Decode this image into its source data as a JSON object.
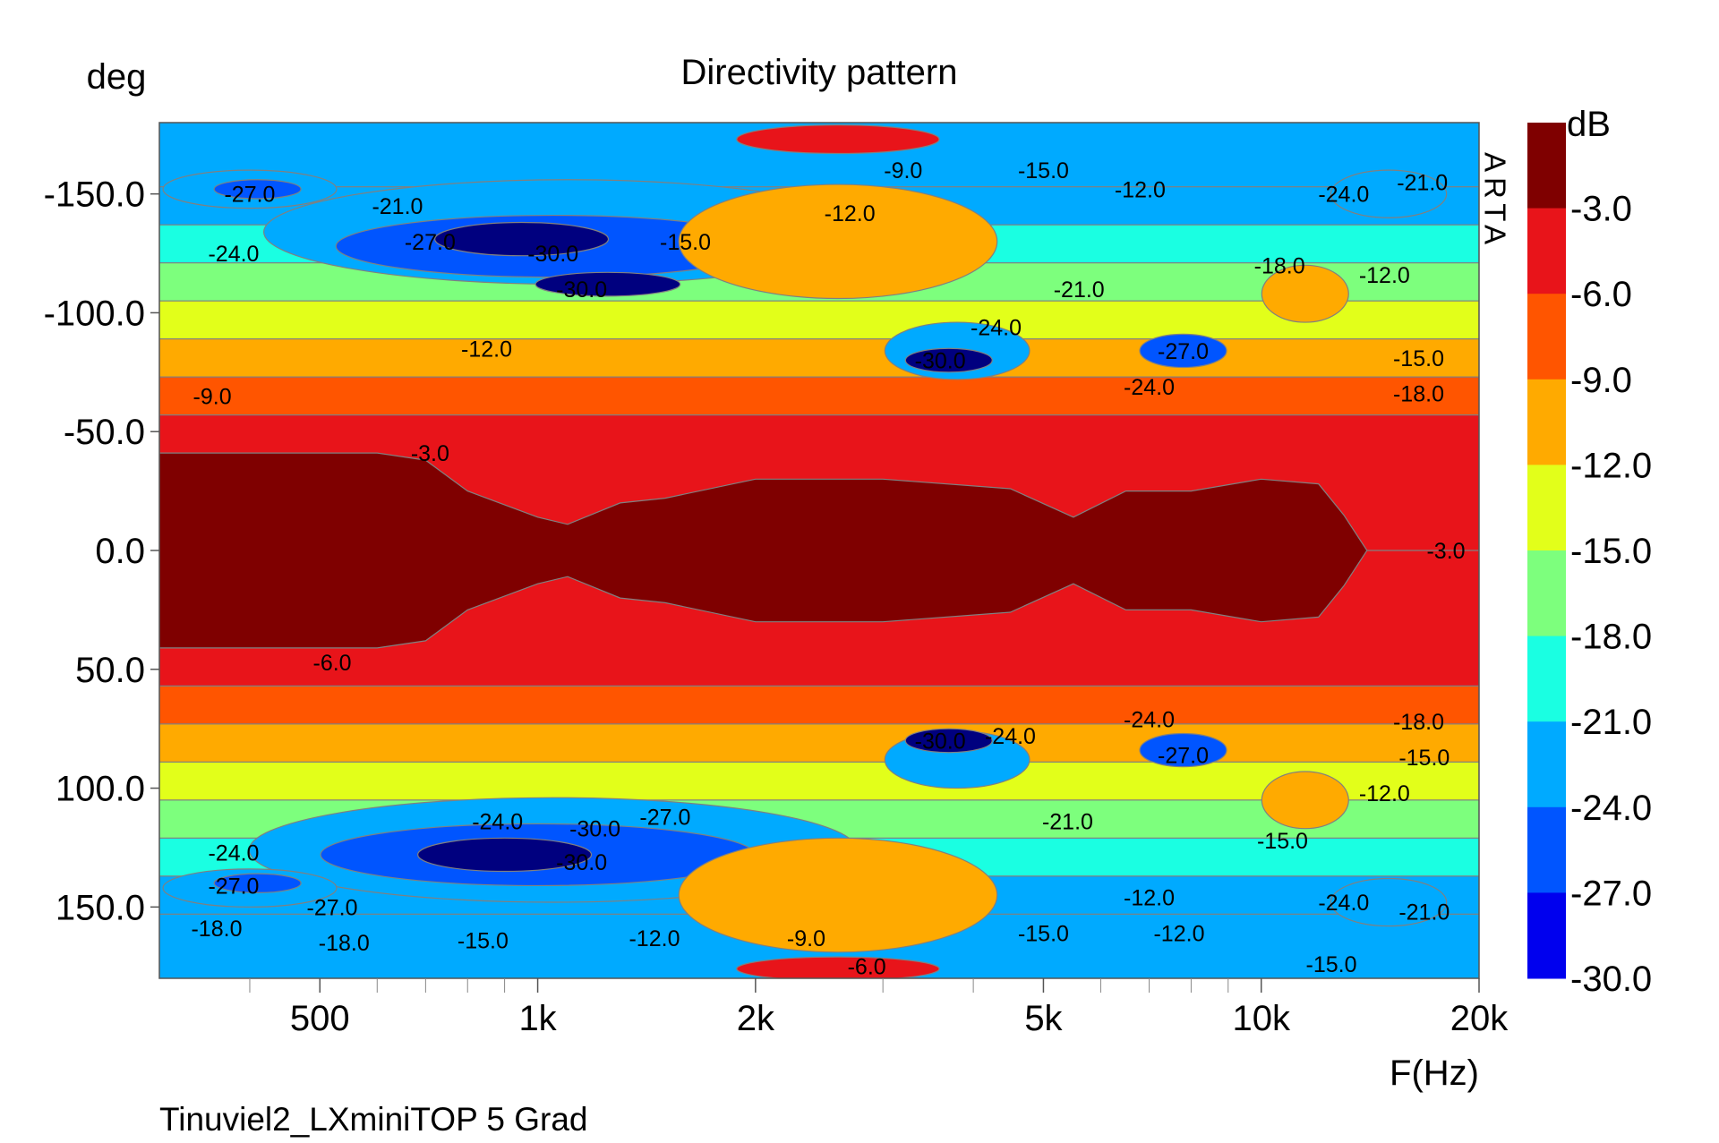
{
  "chart_data": {
    "type": "heatmap",
    "title": "Directivity pattern",
    "xlabel": "F(Hz)",
    "ylabel": "deg",
    "colorbar_label": "dB",
    "watermark": "ARTA",
    "caption": "Tinuviel2_LXminiTOP 5 Grad",
    "x_scale": "log",
    "xlim": [
      300,
      20000
    ],
    "ylim": [
      -180,
      180
    ],
    "y_inverted": true,
    "x_ticks": [
      {
        "value": 500,
        "label": "500"
      },
      {
        "value": 1000,
        "label": "1k"
      },
      {
        "value": 2000,
        "label": "2k"
      },
      {
        "value": 5000,
        "label": "5k"
      },
      {
        "value": 10000,
        "label": "10k"
      },
      {
        "value": 20000,
        "label": "20k"
      }
    ],
    "x_minor_ticks": [
      400,
      600,
      700,
      800,
      900,
      3000,
      4000,
      6000,
      7000,
      8000,
      9000
    ],
    "y_ticks": [
      {
        "value": -150,
        "label": "-150.0"
      },
      {
        "value": -100,
        "label": "-100.0"
      },
      {
        "value": -50,
        "label": "-50.0"
      },
      {
        "value": 0,
        "label": "0.0"
      },
      {
        "value": 50,
        "label": "50.0"
      },
      {
        "value": 100,
        "label": "100.0"
      },
      {
        "value": 150,
        "label": "150.0"
      }
    ],
    "levels": [
      {
        "label": "-3.0",
        "min": -3,
        "color": "#7f0000"
      },
      {
        "label": "-6.0",
        "min": -6,
        "color": "#e8141a"
      },
      {
        "label": "-9.0",
        "min": -9,
        "color": "#ff5500"
      },
      {
        "label": "-12.0",
        "min": -12,
        "color": "#ffaa00"
      },
      {
        "label": "-15.0",
        "min": -15,
        "color": "#e2ff1a"
      },
      {
        "label": "-18.0",
        "min": -18,
        "color": "#7dff7d"
      },
      {
        "label": "-21.0",
        "min": -21,
        "color": "#1affe2"
      },
      {
        "label": "-24.0",
        "min": -24,
        "color": "#00aaff"
      },
      {
        "label": "-27.0",
        "min": -27,
        "color": "#0055ff"
      },
      {
        "label": "-30.0",
        "min": -30,
        "color": "#0000ee"
      }
    ],
    "blob_colors": {
      "-30": "#00007f"
    },
    "beam": [
      {
        "f": 300,
        "w": 41
      },
      {
        "f": 500,
        "w": 41
      },
      {
        "f": 600,
        "w": 41
      },
      {
        "f": 700,
        "w": 38
      },
      {
        "f": 800,
        "w": 25
      },
      {
        "f": 1000,
        "w": 14
      },
      {
        "f": 1100,
        "w": 11
      },
      {
        "f": 1300,
        "w": 20
      },
      {
        "f": 1500,
        "w": 22
      },
      {
        "f": 2000,
        "w": 30
      },
      {
        "f": 3000,
        "w": 30
      },
      {
        "f": 4500,
        "w": 26
      },
      {
        "f": 5500,
        "w": 14
      },
      {
        "f": 6500,
        "w": 25
      },
      {
        "f": 8000,
        "w": 25
      },
      {
        "f": 10000,
        "w": 30
      },
      {
        "f": 12000,
        "w": 28
      },
      {
        "f": 13000,
        "w": 15
      },
      {
        "f": 14000,
        "w": 0
      },
      {
        "f": 20000,
        "w": 0
      }
    ],
    "blobs": [
      {
        "fc": 1100,
        "a": -134,
        "fw": 0.42,
        "aw": 22,
        "level": -24
      },
      {
        "fc": 1050,
        "a": -128,
        "fw": 0.3,
        "aw": 13,
        "level": -27
      },
      {
        "fc": 950,
        "a": -131,
        "fw": 0.12,
        "aw": 7,
        "level": -30
      },
      {
        "fc": 1250,
        "a": -112,
        "fw": 0.1,
        "aw": 5,
        "level": -30
      },
      {
        "fc": 400,
        "a": -152,
        "fw": 0.12,
        "aw": 8,
        "level": -24
      },
      {
        "fc": 410,
        "a": -152,
        "fw": 0.06,
        "aw": 4,
        "level": -27
      },
      {
        "fc": 3800,
        "a": -84,
        "fw": 0.1,
        "aw": 12,
        "level": -24
      },
      {
        "fc": 3700,
        "a": -80,
        "fw": 0.06,
        "aw": 5,
        "level": -30
      },
      {
        "fc": 7800,
        "a": -84,
        "fw": 0.06,
        "aw": 7,
        "level": -27
      },
      {
        "fc": 15000,
        "a": -150,
        "fw": 0.08,
        "aw": 10,
        "level": -24
      },
      {
        "fc": 1050,
        "a": 126,
        "fw": 0.42,
        "aw": 22,
        "level": -24
      },
      {
        "fc": 1000,
        "a": 128,
        "fw": 0.3,
        "aw": 13,
        "level": -27
      },
      {
        "fc": 900,
        "a": 128,
        "fw": 0.12,
        "aw": 7,
        "level": -30
      },
      {
        "fc": 400,
        "a": 142,
        "fw": 0.12,
        "aw": 8,
        "level": -24
      },
      {
        "fc": 410,
        "a": 140,
        "fw": 0.06,
        "aw": 4,
        "level": -27
      },
      {
        "fc": 3800,
        "a": 88,
        "fw": 0.1,
        "aw": 12,
        "level": -24
      },
      {
        "fc": 3700,
        "a": 80,
        "fw": 0.06,
        "aw": 5,
        "level": -30
      },
      {
        "fc": 7800,
        "a": 84,
        "fw": 0.06,
        "aw": 7,
        "level": -27
      },
      {
        "fc": 15000,
        "a": 148,
        "fw": 0.08,
        "aw": 10,
        "level": -24
      },
      {
        "fc": 2600,
        "a": -130,
        "fw": 0.22,
        "aw": 24,
        "level": -12
      },
      {
        "fc": 2600,
        "a": 145,
        "fw": 0.22,
        "aw": 24,
        "level": -12
      },
      {
        "fc": 11500,
        "a": -108,
        "fw": 0.06,
        "aw": 12,
        "level": -12
      },
      {
        "fc": 11500,
        "a": 105,
        "fw": 0.06,
        "aw": 12,
        "level": -12
      },
      {
        "fc": 2600,
        "a": -173,
        "fw": 0.14,
        "aw": 6,
        "level": -6
      },
      {
        "fc": 2600,
        "a": 176,
        "fw": 0.14,
        "aw": 5,
        "level": -6
      }
    ],
    "contour_labels": [
      {
        "f": 400,
        "a": -150,
        "text": "-27.0"
      },
      {
        "f": 380,
        "a": -125,
        "text": "-24.0"
      },
      {
        "f": 640,
        "a": -145,
        "text": "-21.0"
      },
      {
        "f": 710,
        "a": -130,
        "text": "-27.0"
      },
      {
        "f": 1050,
        "a": -125,
        "text": "-30.0"
      },
      {
        "f": 1150,
        "a": -110,
        "text": "-30.0"
      },
      {
        "f": 1600,
        "a": -130,
        "text": "-15.0"
      },
      {
        "f": 2700,
        "a": -142,
        "text": "-12.0"
      },
      {
        "f": 3200,
        "a": -160,
        "text": "-9.0"
      },
      {
        "f": 5000,
        "a": -160,
        "text": "-15.0"
      },
      {
        "f": 6800,
        "a": -152,
        "text": "-12.0"
      },
      {
        "f": 13000,
        "a": -150,
        "text": "-24.0"
      },
      {
        "f": 16700,
        "a": -155,
        "text": "-21.0"
      },
      {
        "f": 10600,
        "a": -120,
        "text": "-18.0"
      },
      {
        "f": 14800,
        "a": -116,
        "text": "-12.0"
      },
      {
        "f": 5600,
        "a": -110,
        "text": "-21.0"
      },
      {
        "f": 4300,
        "a": -94,
        "text": "-24.0"
      },
      {
        "f": 3600,
        "a": -80,
        "text": "-30.0"
      },
      {
        "f": 7800,
        "a": -84,
        "text": "-27.0"
      },
      {
        "f": 7000,
        "a": -69,
        "text": "-24.0"
      },
      {
        "f": 16500,
        "a": -81,
        "text": "-15.0"
      },
      {
        "f": 16500,
        "a": -66,
        "text": "-18.0"
      },
      {
        "f": 850,
        "a": -85,
        "text": "-12.0"
      },
      {
        "f": 355,
        "a": -65,
        "text": "-9.0"
      },
      {
        "f": 710,
        "a": -41,
        "text": "-3.0"
      },
      {
        "f": 18000,
        "a": 0,
        "text": "-3.0"
      },
      {
        "f": 520,
        "a": 47,
        "text": "-6.0"
      },
      {
        "f": 7000,
        "a": 71,
        "text": "-24.0"
      },
      {
        "f": 7800,
        "a": 86,
        "text": "-27.0"
      },
      {
        "f": 3600,
        "a": 80,
        "text": "-30.0"
      },
      {
        "f": 4500,
        "a": 78,
        "text": "-24.0"
      },
      {
        "f": 16500,
        "a": 72,
        "text": "-18.0"
      },
      {
        "f": 16800,
        "a": 87,
        "text": "-15.0"
      },
      {
        "f": 14800,
        "a": 102,
        "text": "-12.0"
      },
      {
        "f": 5400,
        "a": 114,
        "text": "-21.0"
      },
      {
        "f": 10700,
        "a": 122,
        "text": "-15.0"
      },
      {
        "f": 880,
        "a": 114,
        "text": "-24.0"
      },
      {
        "f": 1200,
        "a": 117,
        "text": "-30.0"
      },
      {
        "f": 1500,
        "a": 112,
        "text": "-27.0"
      },
      {
        "f": 1150,
        "a": 131,
        "text": "-30.0"
      },
      {
        "f": 380,
        "a": 127,
        "text": "-24.0"
      },
      {
        "f": 380,
        "a": 141,
        "text": "-27.0"
      },
      {
        "f": 520,
        "a": 150,
        "text": "-27.0"
      },
      {
        "f": 360,
        "a": 159,
        "text": "-18.0"
      },
      {
        "f": 540,
        "a": 165,
        "text": "-18.0"
      },
      {
        "f": 840,
        "a": 164,
        "text": "-15.0"
      },
      {
        "f": 1450,
        "a": 163,
        "text": "-12.0"
      },
      {
        "f": 2350,
        "a": 163,
        "text": "-9.0"
      },
      {
        "f": 2850,
        "a": 175,
        "text": "-6.0"
      },
      {
        "f": 7000,
        "a": 146,
        "text": "-12.0"
      },
      {
        "f": 7700,
        "a": 161,
        "text": "-12.0"
      },
      {
        "f": 5000,
        "a": 161,
        "text": "-15.0"
      },
      {
        "f": 13000,
        "a": 148,
        "text": "-24.0"
      },
      {
        "f": 16800,
        "a": 152,
        "text": "-21.0"
      },
      {
        "f": 12500,
        "a": 174,
        "text": "-15.0"
      }
    ]
  }
}
